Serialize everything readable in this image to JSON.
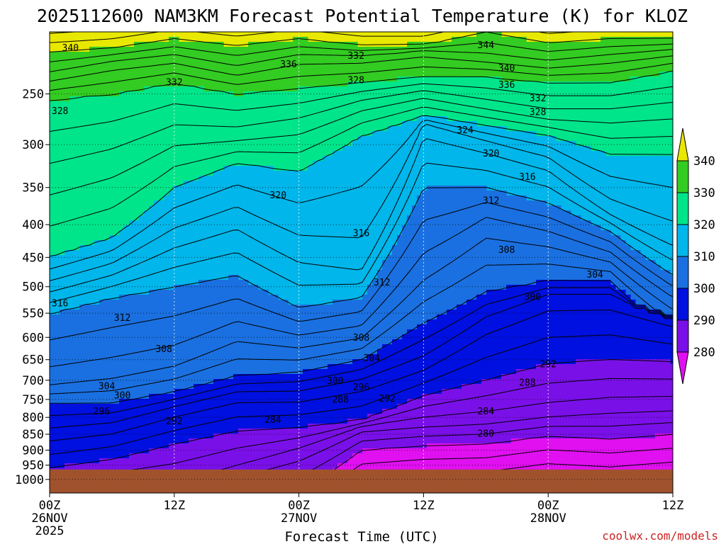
{
  "chart_data": {
    "type": "contour",
    "title": "2025112600 NAM3KM Forecast Potential Temperature (K) for KLOZ",
    "xlabel": "Forecast Time (UTC)",
    "credit": "coolwx.com/models",
    "x_ticks": [
      {
        "hour": 0,
        "line1": "00Z",
        "line2": "26NOV",
        "line3": "2025"
      },
      {
        "hour": 12,
        "line1": "12Z",
        "line2": "",
        "line3": ""
      },
      {
        "hour": 24,
        "line1": "00Z",
        "line2": "27NOV",
        "line3": ""
      },
      {
        "hour": 36,
        "line1": "12Z",
        "line2": "",
        "line3": ""
      },
      {
        "hour": 48,
        "line1": "00Z",
        "line2": "28NOV",
        "line3": ""
      },
      {
        "hour": 60,
        "line1": "12Z",
        "line2": "",
        "line3": ""
      }
    ],
    "xlim_hours": [
      0,
      60
    ],
    "y_ticks": [
      250,
      300,
      350,
      400,
      450,
      500,
      550,
      600,
      650,
      700,
      750,
      800,
      850,
      900,
      950,
      1000
    ],
    "ylim_hPa": [
      200,
      1050
    ],
    "ground_pressure_hPa": 965,
    "contour_interval_K": 2,
    "colorbar": {
      "labels": [
        "340",
        "330",
        "320",
        "310",
        "300",
        "290",
        "280"
      ],
      "bands": [
        {
          "lo": 340,
          "hi": 400,
          "color": "#e8e800"
        },
        {
          "lo": 330,
          "hi": 340,
          "color": "#33cc22"
        },
        {
          "lo": 320,
          "hi": 330,
          "color": "#00e58a"
        },
        {
          "lo": 310,
          "hi": 320,
          "color": "#00b6ea"
        },
        {
          "lo": 300,
          "hi": 310,
          "color": "#1a70e0"
        },
        {
          "lo": 290,
          "hi": 300,
          "color": "#0010e0"
        },
        {
          "lo": 280,
          "hi": 290,
          "color": "#7a10e8"
        },
        {
          "lo": 200,
          "hi": 280,
          "color": "#e010f0"
        }
      ]
    },
    "isotherm_profiles": {
      "hours": [
        0,
        6,
        12,
        18,
        24,
        30,
        36,
        42,
        48,
        54,
        60
      ],
      "series": [
        {
          "k": 280,
          "p": [
            1050,
            1050,
            1050,
            1050,
            1050,
            900,
            885,
            880,
            855,
            865,
            850
          ]
        },
        {
          "k": 285,
          "p": [
            1050,
            1050,
            1050,
            980,
            910,
            830,
            815,
            805,
            785,
            770,
            765
          ]
        },
        {
          "k": 290,
          "p": [
            960,
            930,
            880,
            840,
            830,
            810,
            740,
            700,
            660,
            650,
            655
          ]
        },
        {
          "k": 295,
          "p": [
            850,
            830,
            780,
            740,
            740,
            710,
            660,
            570,
            520,
            520,
            560
          ]
        },
        {
          "k": 300,
          "p": [
            760,
            760,
            730,
            690,
            680,
            650,
            570,
            510,
            490,
            490,
            600
          ]
        },
        {
          "k": 305,
          "p": [
            700,
            680,
            650,
            590,
            610,
            590,
            470,
            400,
            420,
            450,
            530
          ]
        },
        {
          "k": 310,
          "p": [
            550,
            520,
            500,
            480,
            540,
            520,
            350,
            350,
            370,
            410,
            480
          ]
        },
        {
          "k": 315,
          "p": [
            500,
            470,
            420,
            390,
            440,
            460,
            280,
            300,
            320,
            380,
            420
          ]
        },
        {
          "k": 320,
          "p": [
            450,
            420,
            350,
            320,
            330,
            290,
            270,
            280,
            290,
            310,
            310
          ]
        },
        {
          "k": 325,
          "p": [
            340,
            320,
            290,
            290,
            280,
            260,
            250,
            260,
            270,
            270,
            265
          ]
        },
        {
          "k": 330,
          "p": [
            255,
            250,
            240,
            250,
            245,
            240,
            235,
            235,
            240,
            240,
            230
          ]
        },
        {
          "k": 335,
          "p": [
            235,
            225,
            220,
            230,
            220,
            220,
            215,
            220,
            225,
            220,
            215
          ]
        },
        {
          "k": 340,
          "p": [
            215,
            212,
            205,
            210,
            205,
            210,
            210,
            200,
            208,
            205,
            205
          ]
        }
      ]
    },
    "contour_labels": [
      {
        "text": "340",
        "hour": 2.0,
        "p": 212
      },
      {
        "text": "336",
        "hour": 23.0,
        "p": 225
      },
      {
        "text": "332",
        "hour": 29.5,
        "p": 218
      },
      {
        "text": "344",
        "hour": 42.0,
        "p": 210
      },
      {
        "text": "340",
        "hour": 44.0,
        "p": 228
      },
      {
        "text": "336",
        "hour": 44.0,
        "p": 242
      },
      {
        "text": "332",
        "hour": 12.0,
        "p": 240
      },
      {
        "text": "328",
        "hour": 29.5,
        "p": 238
      },
      {
        "text": "332",
        "hour": 47.0,
        "p": 254
      },
      {
        "text": "328",
        "hour": 1.0,
        "p": 266
      },
      {
        "text": "328",
        "hour": 47.0,
        "p": 267
      },
      {
        "text": "324",
        "hour": 40.0,
        "p": 285
      },
      {
        "text": "320",
        "hour": 42.5,
        "p": 310
      },
      {
        "text": "316",
        "hour": 46.0,
        "p": 337
      },
      {
        "text": "320",
        "hour": 22.0,
        "p": 360
      },
      {
        "text": "312",
        "hour": 42.5,
        "p": 367
      },
      {
        "text": "316",
        "hour": 30.0,
        "p": 413
      },
      {
        "text": "308",
        "hour": 44.0,
        "p": 438
      },
      {
        "text": "304",
        "hour": 52.5,
        "p": 479
      },
      {
        "text": "312",
        "hour": 32.0,
        "p": 493
      },
      {
        "text": "316",
        "hour": 1.0,
        "p": 531
      },
      {
        "text": "312",
        "hour": 7.0,
        "p": 560
      },
      {
        "text": "300",
        "hour": 46.5,
        "p": 519
      },
      {
        "text": "308",
        "hour": 30.0,
        "p": 601
      },
      {
        "text": "308",
        "hour": 11.0,
        "p": 626
      },
      {
        "text": "304",
        "hour": 31.0,
        "p": 647
      },
      {
        "text": "292",
        "hour": 48.0,
        "p": 661
      },
      {
        "text": "300",
        "hour": 27.5,
        "p": 702
      },
      {
        "text": "288",
        "hour": 46.0,
        "p": 707
      },
      {
        "text": "304",
        "hour": 5.5,
        "p": 716
      },
      {
        "text": "296",
        "hour": 30.0,
        "p": 718
      },
      {
        "text": "300",
        "hour": 7.0,
        "p": 740
      },
      {
        "text": "288",
        "hour": 28.0,
        "p": 751
      },
      {
        "text": "292",
        "hour": 32.5,
        "p": 748
      },
      {
        "text": "296",
        "hour": 5.0,
        "p": 783
      },
      {
        "text": "284",
        "hour": 42.0,
        "p": 783
      },
      {
        "text": "292",
        "hour": 12.0,
        "p": 812
      },
      {
        "text": "284",
        "hour": 21.5,
        "p": 808
      },
      {
        "text": "280",
        "hour": 42.0,
        "p": 849
      }
    ]
  }
}
